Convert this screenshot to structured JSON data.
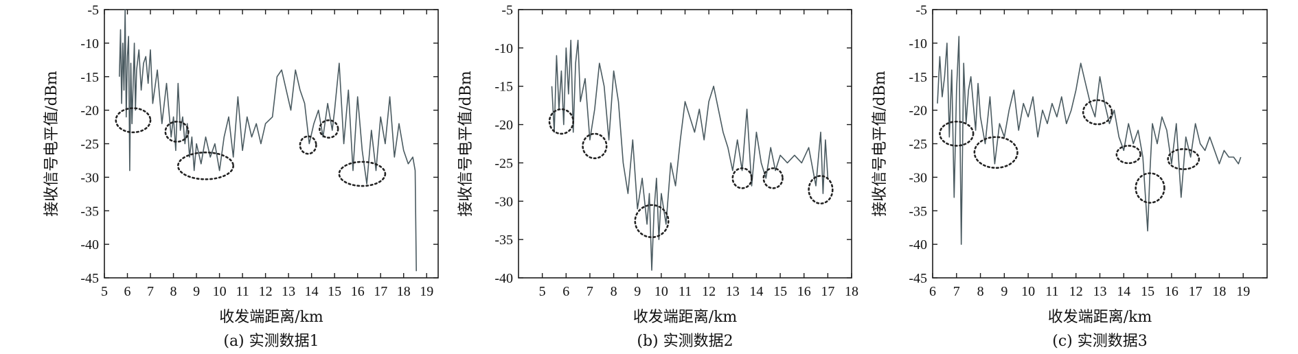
{
  "chart_data": [
    {
      "type": "line",
      "caption": "(a) 实测数据1",
      "xlabel": "收发端距离/km",
      "ylabel": "接收信号电平值/dBm",
      "xlim": [
        5,
        19.5
      ],
      "ylim": [
        -45,
        -5
      ],
      "xticks": [
        5,
        6,
        7,
        8,
        9,
        10,
        11,
        12,
        13,
        14,
        15,
        16,
        17,
        18,
        19
      ],
      "yticks": [
        -45,
        -40,
        -35,
        -30,
        -25,
        -20,
        -15,
        -10,
        -5
      ],
      "color": "#4a5a60",
      "series": [
        {
          "x": [
            5.65,
            5.7,
            5.75,
            5.8,
            5.85,
            5.9,
            5.95,
            6.0,
            6.05,
            6.1,
            6.15,
            6.2,
            6.25,
            6.3,
            6.35,
            6.4,
            6.5,
            6.6,
            6.7,
            6.8,
            6.9,
            7.0,
            7.1,
            7.3,
            7.5,
            7.7,
            7.9,
            8.0,
            8.1,
            8.2,
            8.3,
            8.4,
            8.5,
            8.6,
            8.7,
            8.8,
            8.9,
            9.0,
            9.2,
            9.4,
            9.6,
            9.8,
            10.0,
            10.2,
            10.4,
            10.6,
            10.8,
            11.0,
            11.2,
            11.4,
            11.6,
            11.8,
            12.0,
            12.3,
            12.5,
            12.7,
            12.9,
            13.1,
            13.3,
            13.5,
            13.7,
            13.9,
            14.1,
            14.3,
            14.5,
            14.7,
            14.9,
            15.0,
            15.2,
            15.4,
            15.6,
            15.8,
            16.0,
            16.2,
            16.4,
            16.6,
            16.8,
            17.0,
            17.2,
            17.4,
            17.6,
            17.8,
            18.0,
            18.2,
            18.4,
            18.5,
            18.55
          ],
          "y": [
            -15,
            -8,
            -19,
            -10,
            -17,
            -5,
            -21,
            -12,
            -9,
            -29,
            -13,
            -22,
            -16,
            -10,
            -20,
            -14,
            -11,
            -17,
            -13,
            -12,
            -16,
            -11,
            -19,
            -14,
            -22,
            -16,
            -24,
            -21,
            -26,
            -16,
            -23,
            -21,
            -25,
            -22,
            -27,
            -24,
            -29,
            -25,
            -28,
            -24,
            -27,
            -25,
            -29,
            -24,
            -21,
            -27,
            -18,
            -26,
            -21,
            -24,
            -22,
            -25,
            -22,
            -21,
            -15,
            -14,
            -17,
            -20,
            -14,
            -17,
            -19,
            -25,
            -22,
            -20,
            -24,
            -19,
            -23,
            -20,
            -13,
            -25,
            -17,
            -29,
            -18,
            -26,
            -31,
            -23,
            -29,
            -21,
            -25,
            -18,
            -27,
            -22,
            -26,
            -28,
            -27,
            -29,
            -44
          ]
        }
      ]
    },
    {
      "type": "line",
      "caption": "(b) 实测数据2",
      "xlabel": "收发端距离/km",
      "ylabel": "接收信号电平值/dBm",
      "xlim": [
        4,
        18
      ],
      "ylim": [
        -40,
        -5
      ],
      "xticks": [
        5,
        6,
        7,
        8,
        9,
        10,
        11,
        12,
        13,
        14,
        15,
        16,
        17,
        18
      ],
      "yticks": [
        -40,
        -35,
        -30,
        -25,
        -20,
        -15,
        -10,
        -5
      ],
      "color": "#4a5a60",
      "series": [
        {
          "x": [
            5.4,
            5.5,
            5.6,
            5.7,
            5.8,
            5.9,
            6.0,
            6.1,
            6.2,
            6.3,
            6.4,
            6.5,
            6.6,
            6.8,
            7.0,
            7.2,
            7.4,
            7.6,
            7.8,
            8.0,
            8.2,
            8.4,
            8.6,
            8.8,
            9.0,
            9.2,
            9.4,
            9.5,
            9.6,
            9.7,
            9.8,
            9.9,
            10.0,
            10.2,
            10.4,
            10.6,
            10.8,
            11.0,
            11.2,
            11.4,
            11.6,
            11.8,
            12.0,
            12.2,
            12.4,
            12.6,
            12.8,
            13.0,
            13.2,
            13.4,
            13.6,
            13.8,
            14.0,
            14.2,
            14.4,
            14.6,
            14.8,
            15.0,
            15.3,
            15.6,
            15.9,
            16.2,
            16.5,
            16.7,
            16.8,
            16.9,
            17.0
          ],
          "y": [
            -15,
            -21,
            -11,
            -18,
            -13,
            -20,
            -10,
            -16,
            -9,
            -21,
            -12,
            -9,
            -17,
            -14,
            -22,
            -18,
            -12,
            -15,
            -22,
            -13,
            -17,
            -25,
            -29,
            -22,
            -31,
            -27,
            -33,
            -29,
            -39,
            -31,
            -27,
            -35,
            -29,
            -33,
            -25,
            -28,
            -22,
            -17,
            -19,
            -21,
            -18,
            -22,
            -17,
            -15,
            -18,
            -21,
            -23,
            -26,
            -22,
            -26,
            -18,
            -28,
            -21,
            -25,
            -27,
            -23,
            -26,
            -24,
            -25,
            -24,
            -25,
            -23,
            -28,
            -21,
            -29,
            -22,
            -27
          ]
        }
      ]
    },
    {
      "type": "line",
      "caption": "(c) 实测数据3",
      "xlabel": "收发端距离/km",
      "ylabel": "接收信号电平值/dBm",
      "xlim": [
        6,
        20
      ],
      "ylim": [
        -45,
        -5
      ],
      "xticks": [
        6,
        7,
        8,
        9,
        10,
        11,
        12,
        13,
        14,
        15,
        16,
        17,
        18,
        19
      ],
      "yticks": [
        -45,
        -40,
        -35,
        -30,
        -25,
        -20,
        -15,
        -10,
        -5
      ],
      "color": "#4a5a60",
      "series": [
        {
          "x": [
            6.2,
            6.3,
            6.4,
            6.5,
            6.6,
            6.7,
            6.8,
            6.9,
            7.0,
            7.1,
            7.2,
            7.3,
            7.4,
            7.5,
            7.6,
            7.7,
            7.8,
            7.9,
            8.0,
            8.2,
            8.4,
            8.6,
            8.8,
            9.0,
            9.2,
            9.4,
            9.6,
            9.8,
            10.0,
            10.2,
            10.4,
            10.6,
            10.8,
            11.0,
            11.2,
            11.4,
            11.6,
            11.8,
            12.0,
            12.2,
            12.4,
            12.6,
            12.8,
            13.0,
            13.2,
            13.4,
            13.6,
            13.8,
            14.0,
            14.2,
            14.4,
            14.6,
            14.8,
            15.0,
            15.1,
            15.2,
            15.4,
            15.6,
            15.8,
            16.0,
            16.2,
            16.4,
            16.6,
            16.8,
            17.0,
            17.2,
            17.4,
            17.6,
            17.8,
            18.0,
            18.2,
            18.4,
            18.6,
            18.8,
            18.9
          ],
          "y": [
            -19,
            -12,
            -18,
            -15,
            -10,
            -24,
            -14,
            -33,
            -17,
            -9,
            -40,
            -13,
            -22,
            -17,
            -15,
            -19,
            -23,
            -16,
            -21,
            -25,
            -18,
            -28,
            -22,
            -24,
            -20,
            -17,
            -23,
            -19,
            -21,
            -18,
            -24,
            -20,
            -22,
            -19,
            -21,
            -18,
            -22,
            -20,
            -17,
            -13,
            -16,
            -19,
            -21,
            -15,
            -19,
            -22,
            -20,
            -24,
            -26,
            -22,
            -25,
            -23,
            -27,
            -38,
            -29,
            -22,
            -25,
            -21,
            -23,
            -28,
            -22,
            -33,
            -24,
            -27,
            -22,
            -25,
            -26,
            -24,
            -26,
            -28,
            -26,
            -27,
            -27,
            -28,
            -27
          ]
        }
      ]
    }
  ]
}
